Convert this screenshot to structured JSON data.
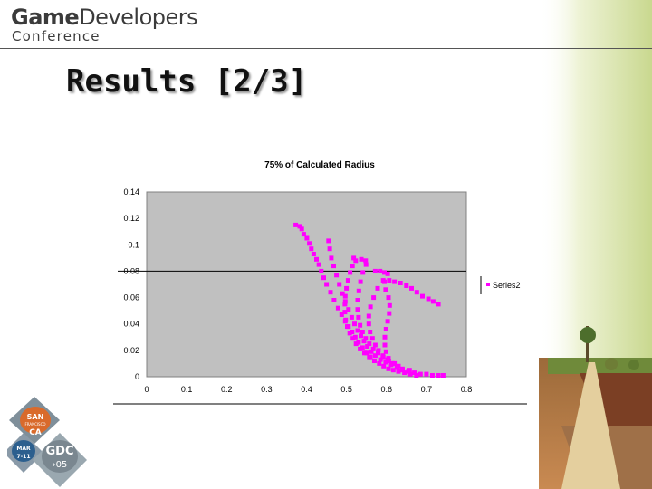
{
  "header": {
    "logo_bold": "Game",
    "logo_rest": "Developers",
    "logo_sub": "Conference"
  },
  "slide": {
    "title": "Results [2/3]"
  },
  "badge": {
    "city_line1": "SAN",
    "city_line2": "FRANCISCO",
    "state": "CA",
    "month": "MAR",
    "dates": "7-11",
    "event": "GDC",
    "year": "›05"
  },
  "colors": {
    "marker": "#ff00ff",
    "plot_bg": "#c0c0c0",
    "gridline": "#000000"
  },
  "chart_data": {
    "type": "scatter",
    "title": "75% of Calculated Radius",
    "xlabel": "",
    "ylabel": "",
    "xlim": [
      0,
      0.8
    ],
    "ylim": [
      0,
      0.14
    ],
    "xticks": [
      "0",
      "0.1",
      "0.2",
      "0.3",
      "0.4",
      "0.5",
      "0.6",
      "0.7",
      "0.8"
    ],
    "yticks": [
      "0",
      "0.02",
      "0.04",
      "0.06",
      "0.08",
      "0.1",
      "0.12",
      "0.14"
    ],
    "gridlines_y": [
      0.08
    ],
    "legend_position": "right",
    "series": [
      {
        "name": "Series2",
        "marker": "square",
        "points": [
          [
            0.373,
            0.115
          ],
          [
            0.383,
            0.114
          ],
          [
            0.388,
            0.112
          ],
          [
            0.393,
            0.108
          ],
          [
            0.401,
            0.105
          ],
          [
            0.407,
            0.101
          ],
          [
            0.412,
            0.097
          ],
          [
            0.418,
            0.093
          ],
          [
            0.425,
            0.089
          ],
          [
            0.431,
            0.085
          ],
          [
            0.437,
            0.08
          ],
          [
            0.443,
            0.075
          ],
          [
            0.45,
            0.07
          ],
          [
            0.46,
            0.064
          ],
          [
            0.469,
            0.058
          ],
          [
            0.479,
            0.052
          ],
          [
            0.488,
            0.047
          ],
          [
            0.497,
            0.042
          ],
          [
            0.505,
            0.038
          ],
          [
            0.514,
            0.034
          ],
          [
            0.522,
            0.03
          ],
          [
            0.53,
            0.026
          ],
          [
            0.54,
            0.022
          ],
          [
            0.55,
            0.018
          ],
          [
            0.56,
            0.015
          ],
          [
            0.57,
            0.012
          ],
          [
            0.582,
            0.01
          ],
          [
            0.593,
            0.008
          ],
          [
            0.605,
            0.006
          ],
          [
            0.617,
            0.005
          ],
          [
            0.63,
            0.004
          ],
          [
            0.645,
            0.003
          ],
          [
            0.66,
            0.002
          ],
          [
            0.675,
            0.001
          ],
          [
            0.455,
            0.103
          ],
          [
            0.458,
            0.097
          ],
          [
            0.462,
            0.09
          ],
          [
            0.468,
            0.084
          ],
          [
            0.475,
            0.077
          ],
          [
            0.482,
            0.07
          ],
          [
            0.49,
            0.063
          ],
          [
            0.497,
            0.057
          ],
          [
            0.505,
            0.051
          ],
          [
            0.513,
            0.045
          ],
          [
            0.52,
            0.04
          ],
          [
            0.528,
            0.035
          ],
          [
            0.536,
            0.031
          ],
          [
            0.544,
            0.027
          ],
          [
            0.552,
            0.023
          ],
          [
            0.562,
            0.019
          ],
          [
            0.572,
            0.016
          ],
          [
            0.585,
            0.013
          ],
          [
            0.598,
            0.011
          ],
          [
            0.612,
            0.009
          ],
          [
            0.627,
            0.007
          ],
          [
            0.64,
            0.006
          ],
          [
            0.658,
            0.005
          ],
          [
            0.518,
            0.09
          ],
          [
            0.523,
            0.088
          ],
          [
            0.515,
            0.084
          ],
          [
            0.509,
            0.079
          ],
          [
            0.504,
            0.073
          ],
          [
            0.5,
            0.067
          ],
          [
            0.497,
            0.061
          ],
          [
            0.496,
            0.055
          ],
          [
            0.496,
            0.049
          ],
          [
            0.498,
            0.043
          ],
          [
            0.502,
            0.038
          ],
          [
            0.508,
            0.033
          ],
          [
            0.516,
            0.029
          ],
          [
            0.524,
            0.025
          ],
          [
            0.534,
            0.021
          ],
          [
            0.545,
            0.018
          ],
          [
            0.557,
            0.015
          ],
          [
            0.57,
            0.012
          ],
          [
            0.537,
            0.089
          ],
          [
            0.548,
            0.088
          ],
          [
            0.549,
            0.085
          ],
          [
            0.541,
            0.079
          ],
          [
            0.535,
            0.072
          ],
          [
            0.531,
            0.065
          ],
          [
            0.528,
            0.058
          ],
          [
            0.528,
            0.051
          ],
          [
            0.53,
            0.045
          ],
          [
            0.534,
            0.039
          ],
          [
            0.54,
            0.034
          ],
          [
            0.548,
            0.029
          ],
          [
            0.557,
            0.025
          ],
          [
            0.567,
            0.021
          ],
          [
            0.579,
            0.018
          ],
          [
            0.592,
            0.015
          ],
          [
            0.606,
            0.012
          ],
          [
            0.62,
            0.01
          ],
          [
            0.572,
            0.08
          ],
          [
            0.584,
            0.08
          ],
          [
            0.595,
            0.079
          ],
          [
            0.603,
            0.078
          ],
          [
            0.592,
            0.073
          ],
          [
            0.578,
            0.067
          ],
          [
            0.568,
            0.06
          ],
          [
            0.56,
            0.053
          ],
          [
            0.556,
            0.046
          ],
          [
            0.556,
            0.04
          ],
          [
            0.559,
            0.034
          ],
          [
            0.565,
            0.029
          ],
          [
            0.572,
            0.024
          ],
          [
            0.58,
            0.02
          ],
          [
            0.591,
            0.016
          ],
          [
            0.603,
            0.013
          ],
          [
            0.616,
            0.01
          ],
          [
            0.63,
            0.008
          ],
          [
            0.595,
            0.072
          ],
          [
            0.607,
            0.073
          ],
          [
            0.62,
            0.072
          ],
          [
            0.635,
            0.071
          ],
          [
            0.65,
            0.069
          ],
          [
            0.663,
            0.067
          ],
          [
            0.676,
            0.064
          ],
          [
            0.69,
            0.061
          ],
          [
            0.705,
            0.059
          ],
          [
            0.717,
            0.057
          ],
          [
            0.73,
            0.055
          ],
          [
            0.598,
            0.066
          ],
          [
            0.605,
            0.06
          ],
          [
            0.608,
            0.054
          ],
          [
            0.607,
            0.048
          ],
          [
            0.603,
            0.042
          ],
          [
            0.599,
            0.036
          ],
          [
            0.596,
            0.03
          ],
          [
            0.596,
            0.024
          ],
          [
            0.599,
            0.019
          ],
          [
            0.605,
            0.014
          ],
          [
            0.614,
            0.01
          ],
          [
            0.626,
            0.007
          ],
          [
            0.64,
            0.005
          ],
          [
            0.655,
            0.004
          ],
          [
            0.67,
            0.003
          ],
          [
            0.685,
            0.002
          ],
          [
            0.7,
            0.002
          ],
          [
            0.715,
            0.001
          ],
          [
            0.73,
            0.001
          ],
          [
            0.742,
            0.001
          ]
        ]
      }
    ]
  }
}
